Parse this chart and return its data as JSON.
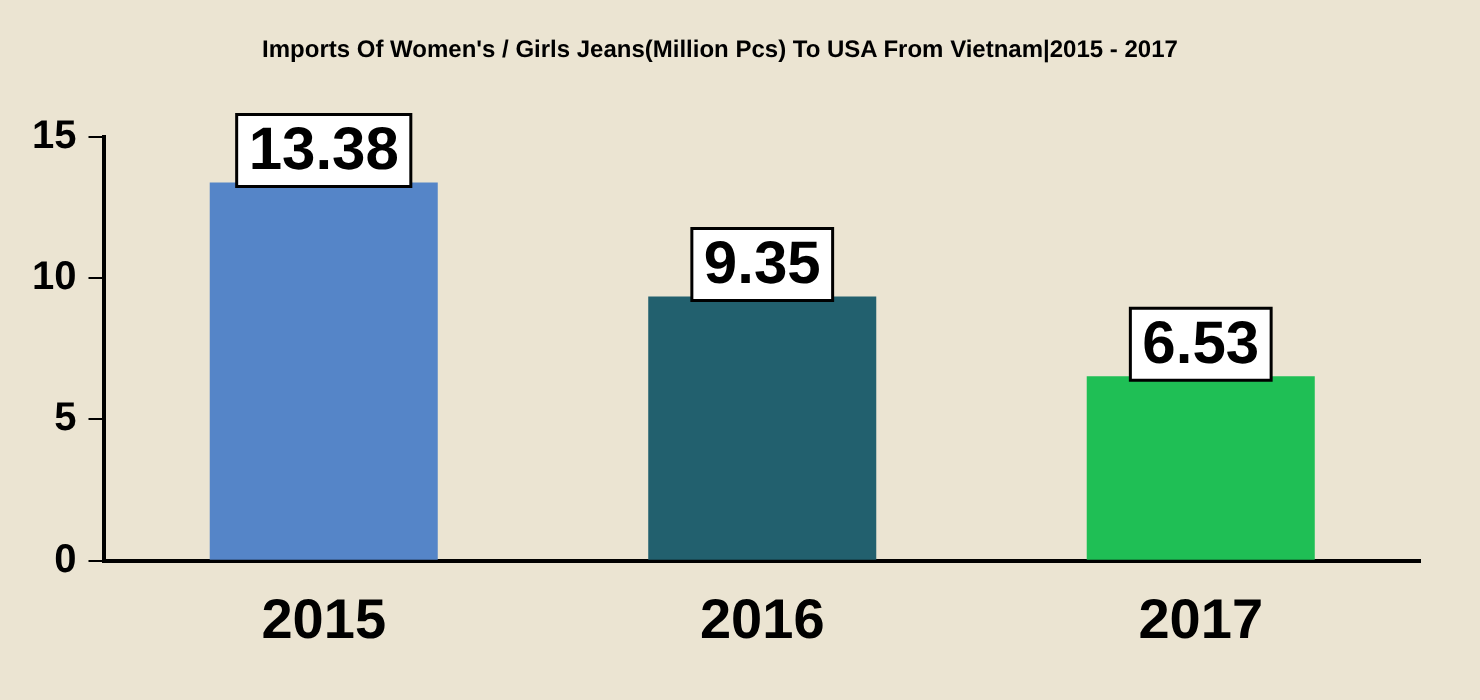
{
  "chart_data": {
    "type": "bar",
    "title": "Imports Of Women's / Girls Jeans(Million Pcs) To USA From Vietnam|2015 - 2017",
    "categories": [
      "2015",
      "2016",
      "2017"
    ],
    "values": [
      13.38,
      9.35,
      6.53
    ],
    "colors": [
      "#5585c8",
      "#22606e",
      "#1fbf55"
    ],
    "ylim": [
      0,
      15
    ],
    "yticks": [
      0,
      5,
      10,
      15
    ],
    "grid": false,
    "legend": false,
    "data_labels": true
  }
}
